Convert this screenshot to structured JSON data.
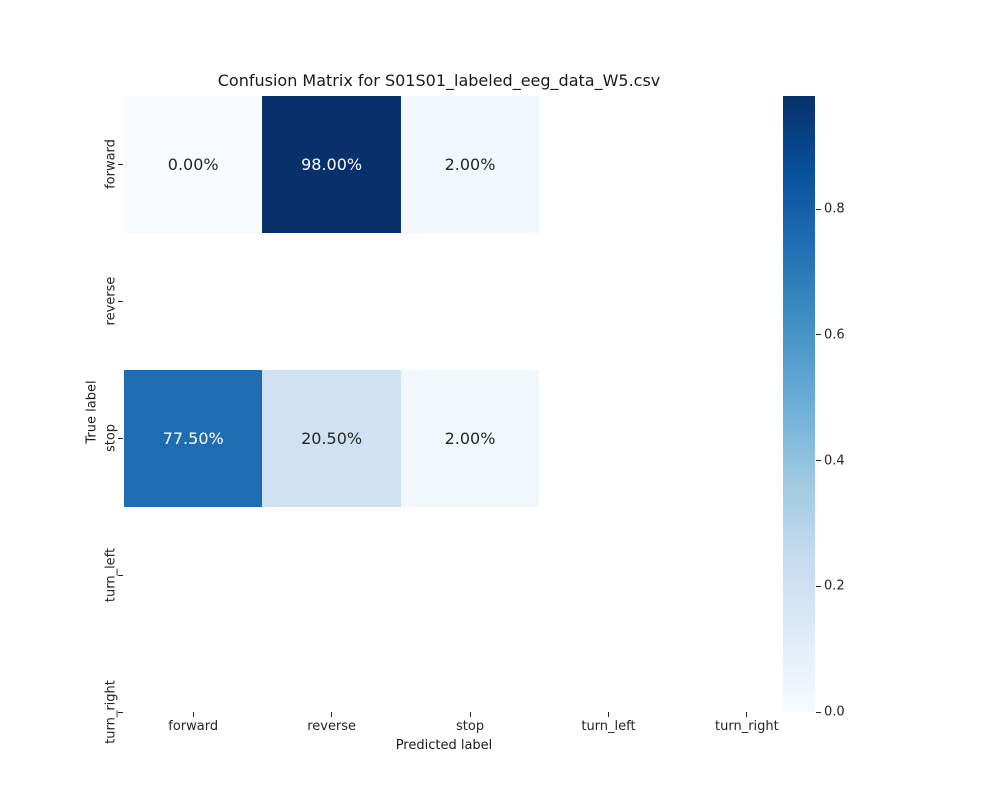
{
  "figure": {
    "background_color": "#ffffff"
  },
  "chart_data": {
    "type": "heatmap",
    "title": "Confusion Matrix for S01S01_labeled_eeg_data_W5.csv",
    "xlabel": "Predicted label",
    "ylabel": "True label",
    "x_categories": [
      "forward",
      "reverse",
      "stop",
      "turn_left",
      "turn_right"
    ],
    "y_categories": [
      "forward",
      "reverse",
      "stop",
      "turn_left",
      "turn_right"
    ],
    "colormap": "Blues",
    "vmin": 0.0,
    "vmax": 0.98,
    "grid": false,
    "cells": [
      {
        "row": 0,
        "col": 0,
        "value": 0.0,
        "label": "0.00%",
        "bg": "#f7fbff",
        "fg": "#262626"
      },
      {
        "row": 0,
        "col": 1,
        "value": 0.98,
        "label": "98.00%",
        "bg": "#08306b",
        "fg": "#ffffff"
      },
      {
        "row": 0,
        "col": 2,
        "value": 0.02,
        "label": "2.00%",
        "bg": "#f1f7fd",
        "fg": "#262626"
      },
      {
        "row": 2,
        "col": 0,
        "value": 0.775,
        "label": "77.50%",
        "bg": "#1e6db2",
        "fg": "#ffffff"
      },
      {
        "row": 2,
        "col": 1,
        "value": 0.205,
        "label": "20.50%",
        "bg": "#cfe1f2",
        "fg": "#262626"
      },
      {
        "row": 2,
        "col": 2,
        "value": 0.02,
        "label": "2.00%",
        "bg": "#f1f7fd",
        "fg": "#262626"
      }
    ],
    "empty_rows": [
      "reverse",
      "turn_left",
      "turn_right"
    ],
    "colorbar": {
      "position": "right",
      "tick_labels": [
        "0.0",
        "0.2",
        "0.4",
        "0.6",
        "0.8"
      ],
      "tick_values": [
        0.0,
        0.2,
        0.4,
        0.6,
        0.8
      ],
      "gradient_stops": [
        "#f7fbff",
        "#deebf7",
        "#c6dbef",
        "#9ecae1",
        "#6baed6",
        "#4292c6",
        "#2171b5",
        "#08519c",
        "#08306b"
      ]
    }
  }
}
